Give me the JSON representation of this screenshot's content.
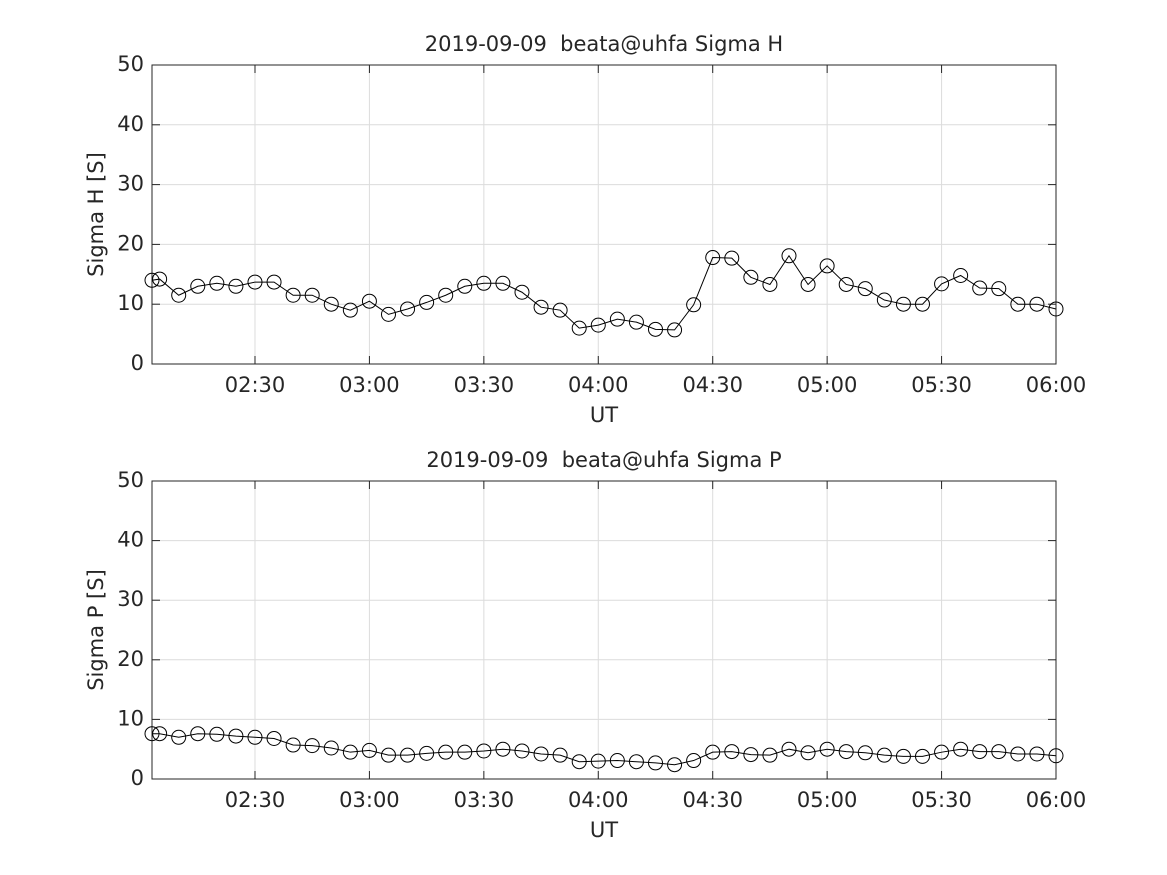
{
  "chart_data": [
    {
      "type": "line",
      "title": "2019-09-09  beata@uhfa Sigma H",
      "xlabel": "UT",
      "ylabel": "Sigma H [S]",
      "x": [
        "02:03",
        "02:05",
        "02:10",
        "02:15",
        "02:20",
        "02:25",
        "02:30",
        "02:35",
        "02:40",
        "02:45",
        "02:50",
        "02:55",
        "03:00",
        "03:05",
        "03:10",
        "03:15",
        "03:20",
        "03:25",
        "03:30",
        "03:35",
        "03:40",
        "03:45",
        "03:50",
        "03:55",
        "04:00",
        "04:05",
        "04:10",
        "04:15",
        "04:20",
        "04:25",
        "04:30",
        "04:35",
        "04:40",
        "04:45",
        "04:50",
        "04:55",
        "05:00",
        "05:05",
        "05:10",
        "05:15",
        "05:20",
        "05:25",
        "05:30",
        "05:35",
        "05:40",
        "05:45",
        "05:50",
        "05:55",
        "06:00"
      ],
      "values": [
        14,
        14.2,
        11.5,
        13,
        13.5,
        13,
        13.7,
        13.7,
        11.5,
        11.5,
        10,
        9,
        10.5,
        8.3,
        9.2,
        10.3,
        11.5,
        13,
        13.5,
        13.5,
        12,
        9.5,
        9,
        6,
        6.5,
        7.5,
        7,
        5.8,
        5.7,
        9.9,
        17.8,
        17.7,
        14.5,
        13.3,
        18.1,
        13.3,
        16.4,
        13.3,
        12.6,
        10.7,
        10,
        10,
        13.4,
        14.8,
        12.7,
        12.6,
        10,
        10,
        9.2
      ],
      "color": "#000000",
      "xlim": [
        "02:03",
        "06:00"
      ],
      "xticks": [
        "02:30",
        "03:00",
        "03:30",
        "04:00",
        "04:30",
        "05:00",
        "05:30",
        "06:00"
      ],
      "ylim": [
        0,
        50
      ],
      "yticks": [
        0,
        10,
        20,
        30,
        40,
        50
      ],
      "grid": true
    },
    {
      "type": "line",
      "title": "2019-09-09  beata@uhfa Sigma P",
      "xlabel": "UT",
      "ylabel": "Sigma P [S]",
      "x": [
        "02:03",
        "02:05",
        "02:10",
        "02:15",
        "02:20",
        "02:25",
        "02:30",
        "02:35",
        "02:40",
        "02:45",
        "02:50",
        "02:55",
        "03:00",
        "03:05",
        "03:10",
        "03:15",
        "03:20",
        "03:25",
        "03:30",
        "03:35",
        "03:40",
        "03:45",
        "03:50",
        "03:55",
        "04:00",
        "04:05",
        "04:10",
        "04:15",
        "04:20",
        "04:25",
        "04:30",
        "04:35",
        "04:40",
        "04:45",
        "04:50",
        "04:55",
        "05:00",
        "05:05",
        "05:10",
        "05:15",
        "05:20",
        "05:25",
        "05:30",
        "05:35",
        "05:40",
        "05:45",
        "05:50",
        "05:55",
        "06:00"
      ],
      "values": [
        7.6,
        7.6,
        7,
        7.6,
        7.5,
        7.2,
        7,
        6.8,
        5.7,
        5.6,
        5.2,
        4.5,
        4.8,
        4,
        4,
        4.3,
        4.5,
        4.5,
        4.7,
        5,
        4.7,
        4.2,
        4,
        2.9,
        3,
        3.1,
        2.9,
        2.7,
        2.4,
        3.1,
        4.5,
        4.6,
        4.1,
        4,
        5,
        4.4,
        5,
        4.6,
        4.4,
        4,
        3.8,
        3.8,
        4.5,
        5,
        4.6,
        4.6,
        4.2,
        4.2,
        3.9
      ],
      "color": "#000000",
      "xlim": [
        "02:03",
        "06:00"
      ],
      "xticks": [
        "02:30",
        "03:00",
        "03:30",
        "04:00",
        "04:30",
        "05:00",
        "05:30",
        "06:00"
      ],
      "ylim": [
        0,
        50
      ],
      "yticks": [
        0,
        10,
        20,
        30,
        40,
        50
      ],
      "grid": true
    }
  ]
}
